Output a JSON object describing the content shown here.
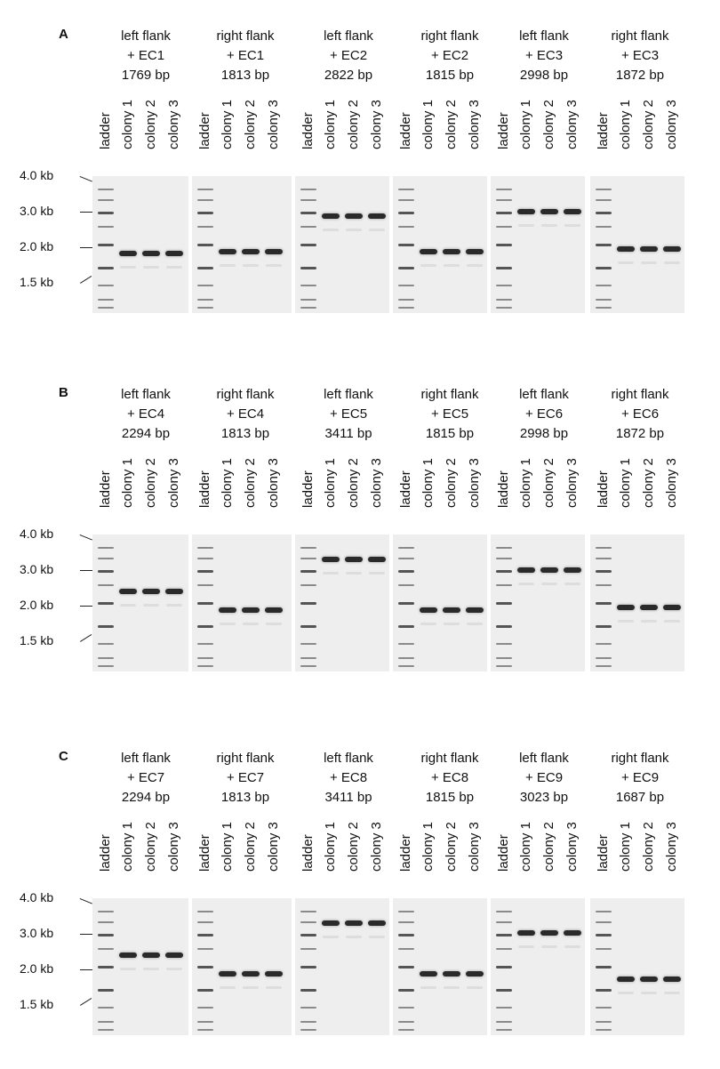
{
  "lane_labels": [
    "ladder",
    "colony 1",
    "colony 2",
    "colony 3"
  ],
  "ladder_marks": [
    "4.0 kb",
    "3.0 kb",
    "2.0 kb",
    "1.5 kb"
  ],
  "panels": [
    {
      "letter": "A",
      "gels": [
        {
          "flank": "left flank",
          "ec": "+ EC1",
          "size": "1769 bp",
          "kb": 1.769
        },
        {
          "flank": "right flank",
          "ec": "+ EC1",
          "size": "1813 bp",
          "kb": 1.813
        },
        {
          "flank": "left flank",
          "ec": "+ EC2",
          "size": "2822 bp",
          "kb": 2.822
        },
        {
          "flank": "right flank",
          "ec": "+ EC2",
          "size": "1815 bp",
          "kb": 1.815
        },
        {
          "flank": "left flank",
          "ec": "+ EC3",
          "size": "2998 bp",
          "kb": 2.998
        },
        {
          "flank": "right flank",
          "ec": "+ EC3",
          "size": "1872 bp",
          "kb": 1.872
        }
      ]
    },
    {
      "letter": "B",
      "gels": [
        {
          "flank": "left flank",
          "ec": "+ EC4",
          "size": "2294 bp",
          "kb": 2.294
        },
        {
          "flank": "right flank",
          "ec": "+ EC4",
          "size": "1813 bp",
          "kb": 1.813
        },
        {
          "flank": "left flank",
          "ec": "+ EC5",
          "size": "3411 bp",
          "kb": 3.411
        },
        {
          "flank": "right flank",
          "ec": "+ EC5",
          "size": "1815 bp",
          "kb": 1.815
        },
        {
          "flank": "left flank",
          "ec": "+ EC6",
          "size": "2998 bp",
          "kb": 2.998
        },
        {
          "flank": "right flank",
          "ec": "+ EC6",
          "size": "1872 bp",
          "kb": 1.872
        }
      ]
    },
    {
      "letter": "C",
      "gels": [
        {
          "flank": "left flank",
          "ec": "+ EC7",
          "size": "2294 bp",
          "kb": 2.294
        },
        {
          "flank": "right flank",
          "ec": "+ EC7",
          "size": "1813 bp",
          "kb": 1.813
        },
        {
          "flank": "left flank",
          "ec": "+ EC8",
          "size": "3411 bp",
          "kb": 3.411
        },
        {
          "flank": "right flank",
          "ec": "+ EC8",
          "size": "1815 bp",
          "kb": 1.815
        },
        {
          "flank": "left flank",
          "ec": "+ EC9",
          "size": "3023 bp",
          "kb": 3.023
        },
        {
          "flank": "right flank",
          "ec": "+ EC9",
          "size": "1687 bp",
          "kb": 1.687
        }
      ]
    }
  ]
}
